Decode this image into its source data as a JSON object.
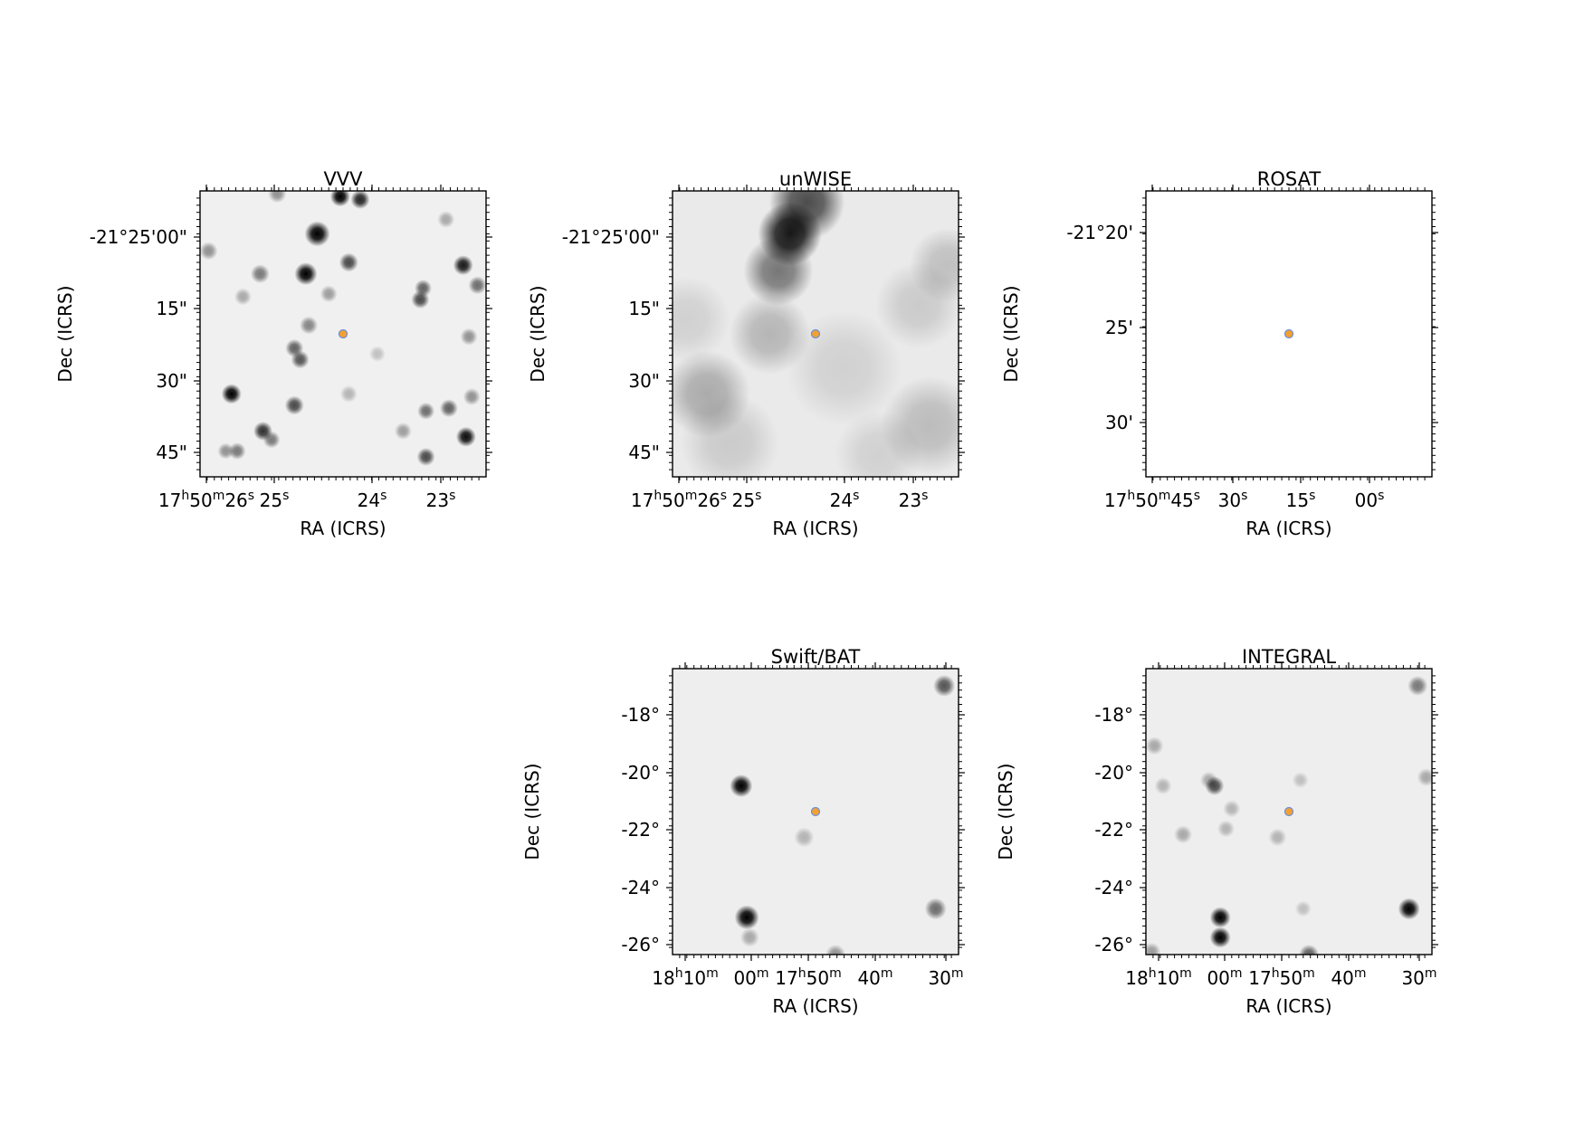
{
  "chart_data": [
    {
      "type": "scatter",
      "title": "VVV",
      "xlabel": "RA (ICRS)",
      "ylabel": "Dec (ICRS)",
      "x_ticks": [
        {
          "main": "17",
          "sup": "h",
          "main2": "50",
          "sup2": "m",
          "main3": "26",
          "sup3": "s"
        },
        {
          "main": "25",
          "sup": "s"
        },
        {
          "main": "24",
          "sup": "s"
        },
        {
          "main": "23",
          "sup": "s"
        }
      ],
      "y_ticks": [
        "-21°25'00\"",
        "15\"",
        "30\"",
        "45\""
      ],
      "background": "#f0f0f0",
      "target_marker": {
        "fill": "#f4a030",
        "edge": "#6a8fd8"
      },
      "sources": [
        [
          0.49,
          0.02,
          1.0,
          1.0
        ],
        [
          0.56,
          0.03,
          0.9,
          0.85
        ],
        [
          0.27,
          0.01,
          0.8,
          0.4
        ],
        [
          0.41,
          0.15,
          1.6,
          1.0
        ],
        [
          0.37,
          0.29,
          1.3,
          1.0
        ],
        [
          0.92,
          0.26,
          1.0,
          0.9
        ],
        [
          0.52,
          0.25,
          0.9,
          0.7
        ],
        [
          0.21,
          0.29,
          0.9,
          0.5
        ],
        [
          0.78,
          0.34,
          0.7,
          0.6
        ],
        [
          0.77,
          0.38,
          0.8,
          0.7
        ],
        [
          0.45,
          0.36,
          0.7,
          0.35
        ],
        [
          0.15,
          0.37,
          0.7,
          0.3
        ],
        [
          0.38,
          0.47,
          0.8,
          0.45
        ],
        [
          0.97,
          0.33,
          0.8,
          0.55
        ],
        [
          0.03,
          0.21,
          0.8,
          0.4
        ],
        [
          0.33,
          0.55,
          0.8,
          0.6
        ],
        [
          0.35,
          0.59,
          0.8,
          0.65
        ],
        [
          0.94,
          0.51,
          0.7,
          0.4
        ],
        [
          0.11,
          0.71,
          1.0,
          1.0
        ],
        [
          0.33,
          0.75,
          0.9,
          0.7
        ],
        [
          0.22,
          0.84,
          0.9,
          0.8
        ],
        [
          0.25,
          0.87,
          0.7,
          0.5
        ],
        [
          0.93,
          0.86,
          1.0,
          0.95
        ],
        [
          0.87,
          0.76,
          0.8,
          0.6
        ],
        [
          0.79,
          0.77,
          0.7,
          0.55
        ],
        [
          0.79,
          0.93,
          0.8,
          0.7
        ],
        [
          0.13,
          0.91,
          0.7,
          0.5
        ],
        [
          0.09,
          0.91,
          0.6,
          0.4
        ],
        [
          0.95,
          0.72,
          0.7,
          0.4
        ],
        [
          0.71,
          0.84,
          0.7,
          0.35
        ],
        [
          0.52,
          0.71,
          0.7,
          0.25
        ],
        [
          0.86,
          0.1,
          0.7,
          0.3
        ],
        [
          0.62,
          0.57,
          0.6,
          0.2
        ]
      ],
      "haze": []
    },
    {
      "type": "scatter",
      "title": "unWISE",
      "xlabel": "RA (ICRS)",
      "ylabel": "Dec (ICRS)",
      "x_ticks": [
        {
          "main": "17",
          "sup": "h",
          "main2": "50",
          "sup2": "m",
          "main3": "26",
          "sup3": "s"
        },
        {
          "main": "25",
          "sup": "s"
        },
        {
          "main": "24",
          "sup": "s"
        },
        {
          "main": "23",
          "sup": "s"
        }
      ],
      "y_ticks": [
        "-21°25'00\"",
        "15\"",
        "30\"",
        "45\""
      ],
      "background": "#eaeaea",
      "target_marker": {
        "fill": "#f4a030",
        "edge": "#6a8fd8"
      },
      "sources": [],
      "haze": [
        [
          0.41,
          0.15,
          22,
          1.0
        ],
        [
          0.47,
          0.04,
          26,
          0.75
        ],
        [
          0.37,
          0.28,
          24,
          0.55
        ],
        [
          0.34,
          0.5,
          28,
          0.25
        ],
        [
          0.12,
          0.71,
          30,
          0.3
        ],
        [
          0.96,
          0.26,
          26,
          0.2
        ],
        [
          0.86,
          0.4,
          30,
          0.15
        ],
        [
          0.9,
          0.82,
          34,
          0.22
        ],
        [
          0.2,
          0.88,
          34,
          0.15
        ],
        [
          0.6,
          0.62,
          40,
          0.12
        ],
        [
          0.05,
          0.45,
          30,
          0.12
        ],
        [
          0.72,
          0.92,
          30,
          0.12
        ]
      ]
    },
    {
      "type": "scatter",
      "title": "ROSAT",
      "xlabel": "RA (ICRS)",
      "ylabel": "Dec (ICRS)",
      "x_ticks": [
        {
          "main": "17",
          "sup": "h",
          "main2": "50",
          "sup2": "m",
          "main3": "45",
          "sup3": "s"
        },
        {
          "main": "30",
          "sup": "s"
        },
        {
          "main": "15",
          "sup": "s"
        },
        {
          "main": "00",
          "sup": "s"
        }
      ],
      "y_ticks": [
        "-21°20'",
        "25'",
        "30'"
      ],
      "background": "#ffffff",
      "target_marker": {
        "fill": "#f4a030",
        "edge": "#6a8fd8"
      },
      "sources": [],
      "haze": []
    },
    {
      "type": "scatter",
      "title": "Swift/BAT",
      "xlabel": "RA (ICRS)",
      "ylabel": "Dec (ICRS)",
      "x_ticks": [
        {
          "main": "18",
          "sup": "h",
          "main2": "10",
          "sup2": "m"
        },
        {
          "main": "00",
          "sup": "m"
        },
        {
          "main": "17",
          "sup": "h",
          "main2": "50",
          "sup2": "m"
        },
        {
          "main": "40",
          "sup": "m"
        },
        {
          "main": "30",
          "sup": "m"
        }
      ],
      "y_ticks": [
        "-18°",
        "-20°",
        "-22°",
        "-24°",
        "-26°"
      ],
      "background": "#eeeeee",
      "target_marker": {
        "fill": "#f4a030",
        "edge": "#6a8fd8"
      },
      "sources": [
        [
          0.24,
          0.41,
          1.3,
          1.0
        ],
        [
          0.26,
          0.87,
          1.5,
          1.0
        ],
        [
          0.95,
          0.06,
          1.2,
          0.65
        ],
        [
          0.92,
          0.84,
          1.2,
          0.55
        ],
        [
          0.27,
          0.94,
          0.9,
          0.3
        ],
        [
          0.46,
          0.59,
          1.0,
          0.25
        ],
        [
          0.57,
          1.0,
          1.0,
          0.4
        ]
      ],
      "haze": []
    },
    {
      "type": "scatter",
      "title": "INTEGRAL",
      "xlabel": "RA (ICRS)",
      "ylabel": "Dec (ICRS)",
      "x_ticks": [
        {
          "main": "18",
          "sup": "h",
          "main2": "10",
          "sup2": "m"
        },
        {
          "main": "00",
          "sup": "m"
        },
        {
          "main": "17",
          "sup": "h",
          "main2": "50",
          "sup2": "m"
        },
        {
          "main": "40",
          "sup": "m"
        },
        {
          "main": "30",
          "sup": "m"
        }
      ],
      "y_ticks": [
        "-18°",
        "-20°",
        "-22°",
        "-24°",
        "-26°"
      ],
      "background": "#eeeeee",
      "target_marker": {
        "fill": "#f4a030",
        "edge": "#6a8fd8"
      },
      "sources": [
        [
          0.26,
          0.87,
          1.1,
          1.0
        ],
        [
          0.26,
          0.94,
          1.1,
          1.0
        ],
        [
          0.92,
          0.84,
          1.2,
          1.0
        ],
        [
          0.24,
          0.41,
          0.9,
          0.7
        ],
        [
          0.22,
          0.39,
          0.7,
          0.3
        ],
        [
          0.03,
          0.27,
          0.8,
          0.3
        ],
        [
          0.13,
          0.58,
          0.8,
          0.3
        ],
        [
          0.3,
          0.49,
          0.7,
          0.25
        ],
        [
          0.28,
          0.56,
          0.7,
          0.25
        ],
        [
          0.57,
          1.0,
          1.0,
          0.6
        ],
        [
          0.95,
          0.06,
          1.0,
          0.5
        ],
        [
          0.98,
          0.38,
          0.8,
          0.3
        ],
        [
          0.06,
          0.41,
          0.7,
          0.25
        ],
        [
          0.46,
          0.59,
          0.8,
          0.25
        ],
        [
          0.54,
          0.39,
          0.6,
          0.2
        ],
        [
          0.02,
          0.99,
          0.8,
          0.35
        ],
        [
          0.55,
          0.84,
          0.6,
          0.2
        ]
      ],
      "haze": []
    }
  ]
}
